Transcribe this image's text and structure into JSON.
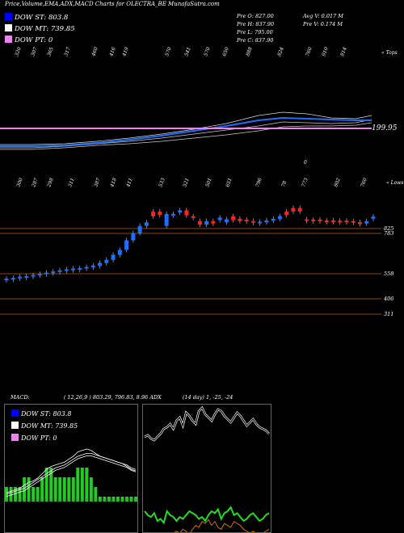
{
  "header": {
    "title": "Price,Volume,EMA,ADX,MACD Charts for OLECTRA_BE MunafaSutra.com"
  },
  "legend": [
    {
      "label": "DOW ST: 803.8",
      "color": "#0000ff"
    },
    {
      "label": "DOW MT: 739.85",
      "color": "#ffffff"
    },
    {
      "label": "DOW PT: 0",
      "color": "#ee82ee"
    }
  ],
  "stats": {
    "prev_open": "Pre  O: 827.00",
    "prev_high": "Pre  H: 837.90",
    "prev_low": "Pre  L: 795.00",
    "prev_close": "Pre  C: 837.90",
    "avg_volume": "Avg V: 0.017  M",
    "prev_volume": "Pre  V: 0.174  M"
  },
  "price_panel": {
    "top_label": "« Tops",
    "low_label": "« Lows",
    "ema_value_label": "199.95",
    "zero_label": "0",
    "level_labels": [
      "825",
      "783",
      "558",
      "406",
      "311"
    ]
  },
  "chart_data": {
    "type": "candlestick",
    "title": "Price,Volume,EMA,ADX,MACD Charts for OLECTRA_BE MunafaSutra.com",
    "top_labels": [
      "320",
      "307",
      "365",
      "317",
      "460",
      "416",
      "419",
      "570",
      "541",
      "570",
      "650",
      "888",
      "824",
      "760",
      "910",
      "814"
    ],
    "low_labels": [
      "300",
      "287",
      "298",
      "311",
      "387",
      "418",
      "411",
      "533",
      "521",
      "501",
      "651",
      "796",
      "78",
      "773",
      "802",
      "760"
    ],
    "candles": [
      {
        "o": 320,
        "c": 318,
        "dir": "up"
      },
      {
        "o": 312,
        "c": 326,
        "dir": "up"
      },
      {
        "o": 322,
        "c": 336,
        "dir": "up"
      },
      {
        "o": 332,
        "c": 340,
        "dir": "up"
      },
      {
        "o": 338,
        "c": 350,
        "dir": "up"
      },
      {
        "o": 348,
        "c": 360,
        "dir": "up"
      },
      {
        "o": 356,
        "c": 370,
        "dir": "up"
      },
      {
        "o": 366,
        "c": 380,
        "dir": "up"
      },
      {
        "o": 376,
        "c": 390,
        "dir": "up"
      },
      {
        "o": 386,
        "c": 398,
        "dir": "up"
      },
      {
        "o": 394,
        "c": 404,
        "dir": "up"
      },
      {
        "o": 400,
        "c": 408,
        "dir": "up"
      },
      {
        "o": 404,
        "c": 418,
        "dir": "up"
      },
      {
        "o": 414,
        "c": 430,
        "dir": "up"
      },
      {
        "o": 426,
        "c": 452,
        "dir": "up"
      },
      {
        "o": 450,
        "c": 478,
        "dir": "up"
      },
      {
        "o": 476,
        "c": 520,
        "dir": "up"
      },
      {
        "o": 518,
        "c": 560,
        "dir": "up"
      },
      {
        "o": 560,
        "c": 640,
        "dir": "up"
      },
      {
        "o": 640,
        "c": 700,
        "dir": "up"
      },
      {
        "o": 700,
        "c": 760,
        "dir": "up"
      },
      {
        "o": 760,
        "c": 790,
        "dir": "up"
      },
      {
        "o": 880,
        "c": 840,
        "dir": "down"
      },
      {
        "o": 880,
        "c": 850,
        "dir": "down"
      },
      {
        "o": 860,
        "c": 760,
        "dir": "up"
      },
      {
        "o": 850,
        "c": 860,
        "dir": "up"
      },
      {
        "o": 872,
        "c": 890,
        "dir": "up"
      },
      {
        "o": 890,
        "c": 848,
        "dir": "down"
      },
      {
        "o": 840,
        "c": 830,
        "dir": "down"
      },
      {
        "o": 800,
        "c": 770,
        "dir": "down"
      },
      {
        "o": 770,
        "c": 800,
        "dir": "up"
      },
      {
        "o": 800,
        "c": 780,
        "dir": "down"
      },
      {
        "o": 808,
        "c": 830,
        "dir": "up"
      },
      {
        "o": 790,
        "c": 816,
        "dir": "up"
      },
      {
        "o": 840,
        "c": 808,
        "dir": "down"
      },
      {
        "o": 820,
        "c": 800,
        "dir": "down"
      },
      {
        "o": 812,
        "c": 800,
        "dir": "down"
      },
      {
        "o": 800,
        "c": 790,
        "dir": "down"
      },
      {
        "o": 790,
        "c": 795,
        "dir": "up"
      },
      {
        "o": 790,
        "c": 806,
        "dir": "up"
      },
      {
        "o": 804,
        "c": 820,
        "dir": "up"
      },
      {
        "o": 818,
        "c": 842,
        "dir": "up"
      },
      {
        "o": 850,
        "c": 880,
        "dir": "down"
      },
      {
        "o": 880,
        "c": 910,
        "dir": "down"
      },
      {
        "o": 910,
        "c": 880,
        "dir": "down"
      },
      {
        "o": 815,
        "c": 815,
        "dir": "down"
      },
      {
        "o": 812,
        "c": 808,
        "dir": "down"
      },
      {
        "o": 812,
        "c": 810,
        "dir": "down"
      },
      {
        "o": 806,
        "c": 800,
        "dir": "down"
      },
      {
        "o": 806,
        "c": 803,
        "dir": "down"
      },
      {
        "o": 804,
        "c": 792,
        "dir": "down"
      },
      {
        "o": 804,
        "c": 795,
        "dir": "down"
      },
      {
        "o": 800,
        "c": 790,
        "dir": "down"
      },
      {
        "o": 792,
        "c": 775,
        "dir": "down"
      },
      {
        "o": 780,
        "c": 800,
        "dir": "up"
      },
      {
        "o": 820,
        "c": 838,
        "dir": "up"
      }
    ],
    "levels": [
      825,
      783,
      558,
      406,
      311
    ],
    "ema_value": 199.95,
    "macd": {
      "label": "MACD:",
      "values": "( 12,26,9 ) 803.29, 796.83, 8.96",
      "series": {
        "macd": [
          10,
          12,
          14,
          16,
          20,
          24,
          26,
          30,
          36,
          42,
          46,
          48,
          50,
          52,
          56,
          60,
          66,
          68,
          70,
          68,
          64,
          60,
          58,
          56,
          54,
          52,
          50,
          46,
          42,
          40
        ],
        "signal": [
          8,
          10,
          12,
          14,
          16,
          20,
          24,
          28,
          32,
          36,
          40,
          44,
          46,
          48,
          52,
          56,
          60,
          62,
          64,
          64,
          62,
          60,
          58,
          56,
          54,
          52,
          50,
          48,
          44,
          42
        ],
        "histogram": [
          2,
          2,
          2,
          2,
          4,
          4,
          2,
          2,
          4,
          6,
          6,
          4,
          4,
          4,
          4,
          4,
          6,
          6,
          6,
          4,
          2,
          0,
          0,
          0,
          0,
          0,
          0,
          -2,
          -2,
          -2
        ]
      }
    },
    "adx": {
      "label": "ADX",
      "values": "(14  day) 1, -25, -24",
      "plus_di": [
        30,
        26,
        24,
        28,
        20,
        22,
        18,
        30,
        26,
        24,
        20,
        24,
        22,
        26,
        30,
        28,
        26,
        22,
        24,
        20,
        26,
        30,
        28,
        32,
        22,
        28,
        30,
        34,
        26,
        28,
        24,
        20,
        22,
        26,
        28,
        24,
        20,
        22,
        26,
        28
      ],
      "minus_di": [
        12,
        14,
        10,
        8,
        10,
        12,
        8,
        10,
        12,
        14,
        16,
        14,
        18,
        16,
        12,
        18,
        22,
        20,
        26,
        24,
        28,
        22,
        26,
        20,
        18,
        24,
        22,
        20,
        26,
        24,
        22,
        18,
        16,
        14,
        16,
        14,
        12,
        14,
        16,
        18
      ],
      "adx": [
        60,
        62,
        58,
        56,
        60,
        64,
        70,
        72,
        76,
        70,
        80,
        84,
        74,
        90,
        86,
        80,
        76,
        92,
        96,
        88,
        84,
        80,
        88,
        94,
        92,
        86,
        82,
        78,
        84,
        90,
        86,
        80,
        74,
        78,
        82,
        76,
        72,
        70,
        68,
        64
      ]
    }
  },
  "macd_legend": {
    "st": "DOW ST: 803.8",
    "mt": "DOW MT: 739.85",
    "pt": "DOW PT: 0"
  }
}
